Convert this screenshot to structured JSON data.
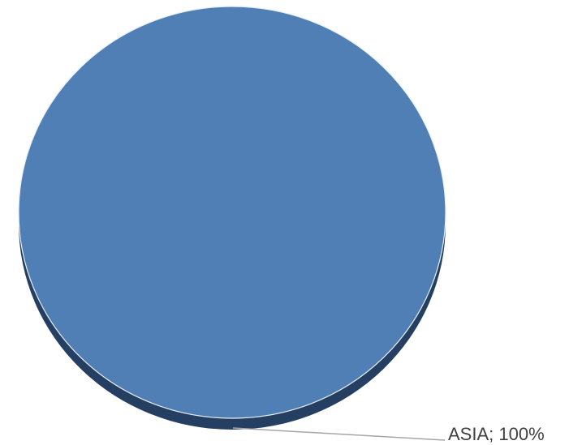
{
  "chart_data": {
    "type": "pie",
    "title": "",
    "slices": [
      {
        "label": "ASIA",
        "value": 100,
        "display": "ASIA; 100%"
      }
    ],
    "colors": {
      "slice": "#4f7fb5",
      "slice_edge": "#2a4a6e",
      "slice_side": "#253f62",
      "leader_line": "#a6a6a6",
      "label_text": "#404040"
    },
    "style": "3d-pie",
    "legend": "none"
  }
}
